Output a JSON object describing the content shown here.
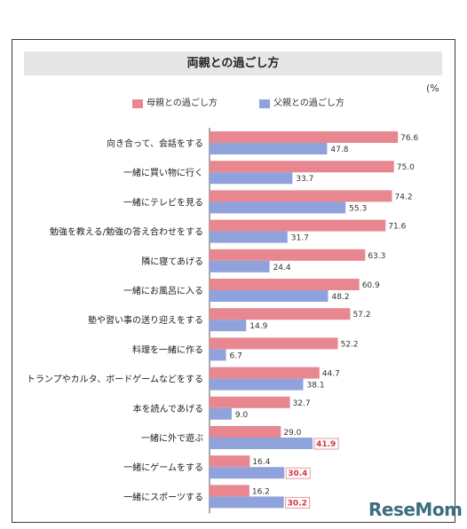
{
  "chart_data": {
    "type": "bar",
    "orientation": "horizontal",
    "title": "両親との過ごし方",
    "unit_label": "(%",
    "categories": [
      "向き合って、会話をする",
      "一緒に買い物に行く",
      "一緒にテレビを見る",
      "勉強を教える/勉強の答え合わせをする",
      "隣に寝てあげる",
      "一緒にお風呂に入る",
      "塾や習い事の送り迎えをする",
      "料理を一緒に作る",
      "トランプやカルタ、ボードゲームなどをする",
      "本を読んであげる",
      "一緒に外で遊ぶ",
      "一緒にゲームをする",
      "一緒にスポーツする"
    ],
    "series": [
      {
        "name": "母親との過ごし方",
        "color": "#e8878f",
        "values": [
          76.6,
          75.0,
          74.2,
          71.6,
          63.3,
          60.9,
          57.2,
          52.2,
          44.7,
          32.7,
          29.0,
          16.4,
          16.2
        ],
        "value_labels": [
          "76.6",
          "75.0",
          "74.2",
          "71.6",
          "63.3",
          "60.9",
          "57.2",
          "52.2",
          "44.7",
          "32.7",
          "29.0",
          "16.4",
          "16.2"
        ]
      },
      {
        "name": "父親との過ごし方",
        "color": "#8fa2dc",
        "values": [
          47.8,
          33.7,
          55.3,
          31.7,
          24.4,
          48.2,
          14.9,
          6.7,
          38.1,
          9.0,
          41.9,
          30.4,
          30.2
        ],
        "value_labels": [
          "47.8",
          "33.7",
          "55.3",
          "31.7",
          "24.4",
          "48.2",
          "14.9",
          "6.7",
          "38.1",
          "9.0",
          "41.9",
          "30.4",
          "30.2"
        ],
        "highlighted_indices": [
          10,
          11,
          12
        ],
        "highlight_color": "#d9363e"
      }
    ],
    "xlim": [
      0,
      100
    ],
    "grid": false,
    "legend_position": "top"
  },
  "watermark": "ReseMom"
}
